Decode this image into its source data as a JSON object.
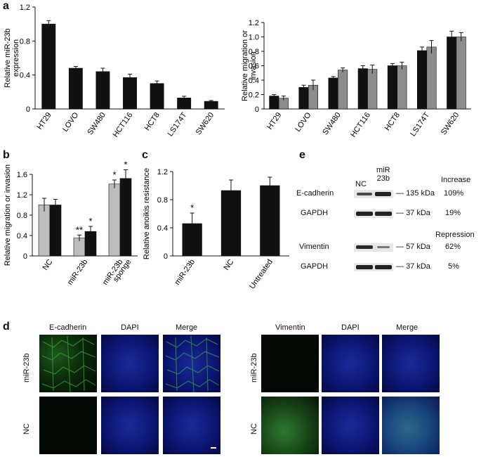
{
  "panels": {
    "a_letter": "a",
    "b_letter": "b",
    "c_letter": "c",
    "d_letter": "d",
    "e_letter": "e"
  },
  "chart_data": [
    {
      "id": "a-left",
      "type": "bar",
      "categories": [
        "HT29",
        "LOVO",
        "SW480",
        "HCT116",
        "HCT8",
        "LS174T",
        "SW620"
      ],
      "series": [
        {
          "values": [
            1.0,
            0.48,
            0.44,
            0.37,
            0.3,
            0.13,
            0.09
          ],
          "errors": [
            0.04,
            0.02,
            0.04,
            0.04,
            0.03,
            0.02,
            0.01
          ]
        }
      ],
      "ylabel": "Relative miR-23b expression",
      "ylim": [
        0,
        1.2
      ],
      "yticks": [
        "0",
        "0.4",
        "0.8",
        "1.2"
      ],
      "colors": [
        "#111111"
      ]
    },
    {
      "id": "a-right",
      "type": "bar",
      "categories": [
        "HT29",
        "LOVO",
        "SW480",
        "HCT116",
        "HCT8",
        "LS174T",
        "SW620"
      ],
      "series": [
        {
          "values": [
            0.18,
            0.3,
            0.43,
            0.56,
            0.6,
            0.81,
            1.0
          ],
          "errors": [
            0.02,
            0.03,
            0.02,
            0.04,
            0.03,
            0.05,
            0.08
          ]
        },
        {
          "values": [
            0.15,
            0.33,
            0.54,
            0.55,
            0.6,
            0.86,
            1.0
          ],
          "errors": [
            0.03,
            0.07,
            0.03,
            0.06,
            0.05,
            0.09,
            0.06
          ]
        }
      ],
      "ylabel": "Relative migration or invasion",
      "ylim": [
        0,
        1.2
      ],
      "yticks": [
        "0",
        "0.2",
        "0.4",
        "0.6",
        "0.8",
        "1.0",
        "1.2"
      ],
      "colors": [
        "#111111",
        "#8c8c8c"
      ]
    },
    {
      "id": "b",
      "type": "bar",
      "categories": [
        "NC",
        "miR-23b",
        "miR-23b sponge"
      ],
      "series": [
        {
          "values": [
            1.0,
            0.35,
            1.41
          ],
          "errors": [
            0.13,
            0.06,
            0.08
          ]
        },
        {
          "values": [
            1.0,
            0.48,
            1.52
          ],
          "errors": [
            0.11,
            0.1,
            0.17
          ]
        }
      ],
      "annotations": [
        [
          "",
          ""
        ],
        [
          "**",
          "*"
        ],
        [
          "*",
          "*"
        ]
      ],
      "ylabel": "Relative migration or invasion",
      "ylim": [
        0,
        1.6
      ],
      "yticks": [
        "0",
        "0.4",
        "0.8",
        "1.2",
        "1.6"
      ],
      "colors": [
        "#bdbdbd",
        "#111111"
      ]
    },
    {
      "id": "c",
      "type": "bar",
      "categories": [
        "miR-23b",
        "NC",
        "Untreated"
      ],
      "series": [
        {
          "values": [
            0.46,
            0.93,
            1.0
          ],
          "errors": [
            0.15,
            0.15,
            0.12
          ]
        }
      ],
      "annotations": [
        [
          "*"
        ],
        [
          ""
        ],
        [
          ""
        ]
      ],
      "ylabel": "Relative anoikis resistance",
      "ylim": [
        0,
        1.2
      ],
      "yticks": [
        "0",
        "0.4",
        "0.8",
        "1.2"
      ],
      "colors": [
        "#111111"
      ]
    }
  ],
  "blot": {
    "lanes": [
      "NC",
      "miR\n23b"
    ],
    "lane_nc": "NC",
    "lane_mir_line1": "miR",
    "lane_mir_line2": "23b",
    "increase_header": "Increase",
    "repression_header": "Repression",
    "rows": [
      {
        "protein": "E-cadherin",
        "size": "135 kDa",
        "pct": "109%"
      },
      {
        "protein": "GAPDH",
        "size": "37 kDa",
        "pct": "19%"
      },
      {
        "protein": "Vimentin",
        "size": "57 kDa",
        "pct": "62%"
      },
      {
        "protein": "GAPDH",
        "size": "37 kDa",
        "pct": "5%"
      }
    ]
  },
  "microscopy": {
    "left_headers": [
      "E-cadherin",
      "DAPI",
      "Merge"
    ],
    "right_headers": [
      "Vimentin",
      "DAPI",
      "Merge"
    ],
    "row_labels": [
      "miR-23b",
      "NC"
    ]
  }
}
